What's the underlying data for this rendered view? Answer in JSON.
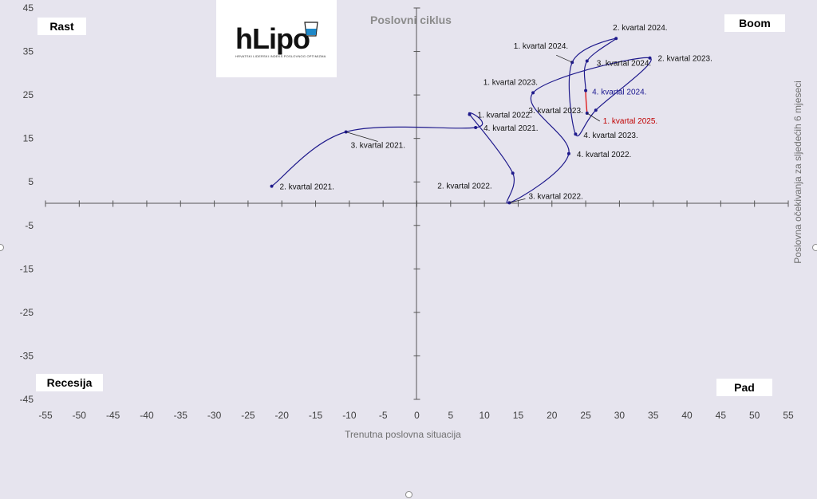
{
  "chart_data": {
    "type": "line",
    "title": "Poslovni ciklus",
    "xlabel": "Trenutna poslovna situacija",
    "ylabel": "Poslovna očekivanja za sljedećih 6 mjeseci",
    "xlim": [
      -55,
      55
    ],
    "ylim": [
      -45,
      45
    ],
    "x_ticks": [
      -55,
      -50,
      -45,
      -40,
      -35,
      -30,
      -25,
      -20,
      -15,
      -10,
      -5,
      0,
      5,
      10,
      15,
      20,
      25,
      30,
      35,
      40,
      45,
      50,
      55
    ],
    "y_ticks": [
      45,
      35,
      25,
      15,
      5,
      -5,
      -15,
      -25,
      -35,
      -45
    ],
    "quadrants": {
      "top_left": "Rast",
      "top_right": "Boom",
      "bottom_left": "Recesija",
      "bottom_right": "Pad"
    },
    "colors": {
      "series": "#1f1a8c",
      "highlight": "#e02020",
      "highlight_label": "#c00000",
      "highlight_point_label": "#1a1690",
      "axis": "#555555",
      "title": "#8c8c8c"
    },
    "points": [
      {
        "label": "2. kvartal 2021.",
        "x": -21.5,
        "y": 4.0
      },
      {
        "label": "3. kvartal 2021.",
        "x": -10.5,
        "y": 16.5
      },
      {
        "label": "4. kvartal 2021.",
        "x": 8.7,
        "y": 17.5
      },
      {
        "label": "1. kvartal 2022.",
        "x": 7.8,
        "y": 20.5
      },
      {
        "label": "2. kvartal 2022.",
        "x": 14.2,
        "y": 7.0
      },
      {
        "label": "3. kvartal 2022.",
        "x": 13.7,
        "y": 0.2
      },
      {
        "label": "4. kvartal 2022.",
        "x": 22.5,
        "y": 11.5
      },
      {
        "label": "1. kvartal 2023.",
        "x": 17.2,
        "y": 25.5
      },
      {
        "label": "2. kvartal 2023.",
        "x": 34.5,
        "y": 33.5
      },
      {
        "label": "3. kvartal 2023.",
        "x": 26.5,
        "y": 21.5
      },
      {
        "label": "4. kvartal 2023.",
        "x": 23.5,
        "y": 16.0
      },
      {
        "label": "1. kvartal 2024.",
        "x": 23.0,
        "y": 32.5
      },
      {
        "label": "2. kvartal 2024.",
        "x": 29.5,
        "y": 38.0
      },
      {
        "label": "3. kvartal 2024.",
        "x": 25.2,
        "y": 32.8
      },
      {
        "label": "4. kvartal 2024.",
        "x": 25.0,
        "y": 26.0
      },
      {
        "label": "1. kvartal 2025.",
        "x": 25.2,
        "y": 20.8
      }
    ]
  },
  "logo": {
    "word": "hLipo",
    "tagline": "HRVATSKI LIDERSKI INDEKS POSLOVNOG OPTIMIZMA"
  }
}
